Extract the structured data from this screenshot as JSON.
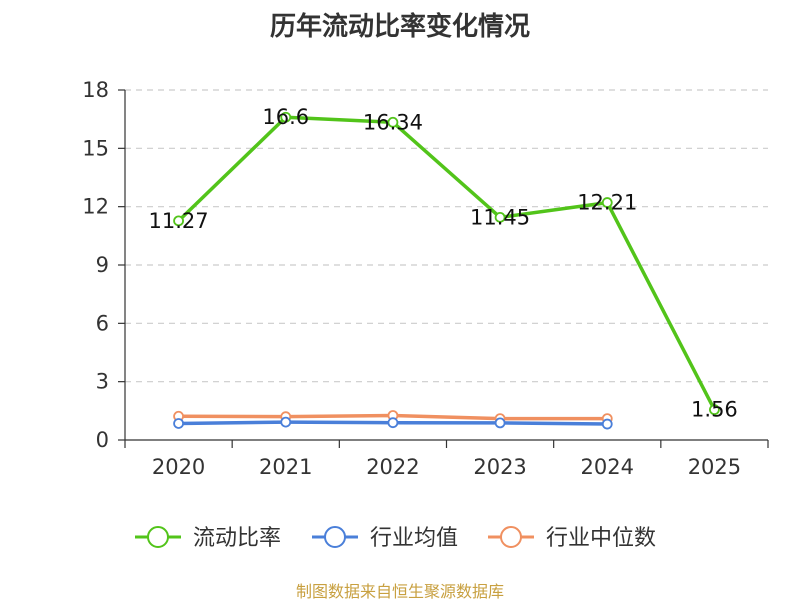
{
  "chart_data": {
    "type": "line",
    "title": "历年流动比率变化情况",
    "categories": [
      "2020",
      "2021",
      "2022",
      "2023",
      "2024",
      "2025"
    ],
    "ylim": [
      0,
      18
    ],
    "yticks": [
      0,
      3,
      6,
      9,
      12,
      15,
      18
    ],
    "grid": true,
    "legend_position": "bottom",
    "series": [
      {
        "name": "流动比率",
        "color": "#52c41a",
        "values": [
          11.27,
          16.6,
          16.34,
          11.45,
          12.21,
          1.56
        ],
        "labels": [
          "11.27",
          "16.6",
          "16.34",
          "11.45",
          "12.21",
          "1.56"
        ]
      },
      {
        "name": "行业均值",
        "color": "#4a7fd9",
        "values": [
          0.85,
          0.92,
          0.89,
          0.88,
          0.82,
          null
        ]
      },
      {
        "name": "行业中位数",
        "color": "#f09060",
        "values": [
          1.22,
          1.2,
          1.26,
          1.1,
          1.1,
          null
        ]
      }
    ]
  },
  "source_note": "制图数据来自恒生聚源数据库"
}
